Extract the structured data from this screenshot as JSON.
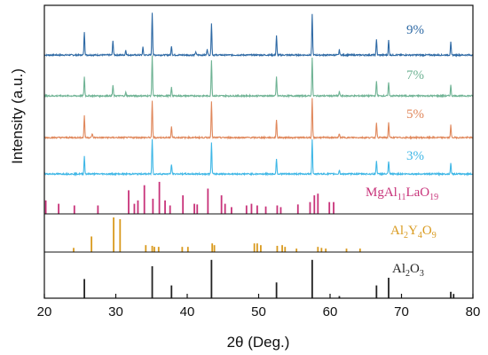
{
  "chart_data": {
    "type": "line",
    "title": "",
    "xlabel": "2θ (Deg.)",
    "ylabel": "Intensity (a.u.)",
    "xlim": [
      20,
      80
    ],
    "xticks": [
      20,
      30,
      40,
      50,
      60,
      70,
      80
    ],
    "grid": false,
    "colors": {
      "s9": "#2f6aa5",
      "s7": "#6fb394",
      "s5": "#e0885c",
      "s3": "#3fb7e6",
      "mgal": "#c8337a",
      "y4o9": "#d99a1e",
      "al2o3": "#222222",
      "axis": "#111111"
    },
    "series": [
      {
        "name": "9%",
        "key": "s9",
        "peaks": [
          [
            25.6,
            0.55
          ],
          [
            29.6,
            0.35
          ],
          [
            31.4,
            0.12
          ],
          [
            33.8,
            0.18
          ],
          [
            35.1,
            1.0
          ],
          [
            37.8,
            0.22
          ],
          [
            41.2,
            0.08
          ],
          [
            42.8,
            0.15
          ],
          [
            43.4,
            0.75
          ],
          [
            52.5,
            0.45
          ],
          [
            57.5,
            0.95
          ],
          [
            61.3,
            0.12
          ],
          [
            66.5,
            0.38
          ],
          [
            68.2,
            0.35
          ],
          [
            76.9,
            0.3
          ]
        ]
      },
      {
        "name": "7%",
        "key": "s7",
        "peaks": [
          [
            25.6,
            0.45
          ],
          [
            29.6,
            0.25
          ],
          [
            31.4,
            0.08
          ],
          [
            35.1,
            0.95
          ],
          [
            37.8,
            0.2
          ],
          [
            43.4,
            0.85
          ],
          [
            52.5,
            0.45
          ],
          [
            57.5,
            0.9
          ],
          [
            61.3,
            0.1
          ],
          [
            66.5,
            0.35
          ],
          [
            68.2,
            0.33
          ],
          [
            76.9,
            0.25
          ]
        ]
      },
      {
        "name": "5%",
        "key": "s5",
        "peaks": [
          [
            25.6,
            0.55
          ],
          [
            26.7,
            0.1
          ],
          [
            35.1,
            0.9
          ],
          [
            37.8,
            0.28
          ],
          [
            43.4,
            0.9
          ],
          [
            52.5,
            0.45
          ],
          [
            57.5,
            0.95
          ],
          [
            61.3,
            0.1
          ],
          [
            66.5,
            0.38
          ],
          [
            68.2,
            0.38
          ],
          [
            76.9,
            0.3
          ]
        ]
      },
      {
        "name": "3%",
        "key": "s3",
        "peaks": [
          [
            25.6,
            0.45
          ],
          [
            35.1,
            0.9
          ],
          [
            37.8,
            0.25
          ],
          [
            43.4,
            0.8
          ],
          [
            52.5,
            0.4
          ],
          [
            57.5,
            0.9
          ],
          [
            61.3,
            0.1
          ],
          [
            66.5,
            0.35
          ],
          [
            68.2,
            0.33
          ],
          [
            76.9,
            0.28
          ]
        ]
      }
    ],
    "references": [
      {
        "name_parts": [
          [
            "MgAl",
            ""
          ],
          [
            "11",
            "sub"
          ],
          [
            "LaO",
            ""
          ],
          [
            "19",
            "sub"
          ]
        ],
        "key": "mgal",
        "sticks": [
          [
            20.2,
            0.4
          ],
          [
            22.0,
            0.3
          ],
          [
            24.2,
            0.25
          ],
          [
            27.5,
            0.25
          ],
          [
            31.8,
            0.7
          ],
          [
            32.6,
            0.3
          ],
          [
            33.1,
            0.4
          ],
          [
            34.0,
            0.85
          ],
          [
            35.2,
            0.45
          ],
          [
            36.1,
            0.95
          ],
          [
            36.9,
            0.4
          ],
          [
            37.6,
            0.25
          ],
          [
            39.4,
            0.55
          ],
          [
            41.0,
            0.3
          ],
          [
            41.4,
            0.28
          ],
          [
            42.9,
            0.75
          ],
          [
            44.8,
            0.55
          ],
          [
            45.3,
            0.3
          ],
          [
            46.2,
            0.2
          ],
          [
            48.3,
            0.25
          ],
          [
            49.0,
            0.3
          ],
          [
            49.8,
            0.25
          ],
          [
            51.0,
            0.22
          ],
          [
            52.6,
            0.25
          ],
          [
            53.1,
            0.2
          ],
          [
            55.5,
            0.28
          ],
          [
            57.2,
            0.35
          ],
          [
            57.8,
            0.55
          ],
          [
            58.3,
            0.6
          ],
          [
            59.9,
            0.35
          ],
          [
            60.5,
            0.35
          ]
        ]
      },
      {
        "name_parts": [
          [
            "Al",
            ""
          ],
          [
            "2",
            "sub"
          ],
          [
            "Y",
            ""
          ],
          [
            "4",
            "sub"
          ],
          [
            "O",
            ""
          ],
          [
            "9",
            "sub"
          ]
        ],
        "key": "y4o9",
        "sticks": [
          [
            24.1,
            0.12
          ],
          [
            26.6,
            0.45
          ],
          [
            29.7,
            1.0
          ],
          [
            30.6,
            0.95
          ],
          [
            34.2,
            0.2
          ],
          [
            35.1,
            0.18
          ],
          [
            35.4,
            0.15
          ],
          [
            36.0,
            0.15
          ],
          [
            39.3,
            0.15
          ],
          [
            40.1,
            0.15
          ],
          [
            43.5,
            0.25
          ],
          [
            43.8,
            0.2
          ],
          [
            49.4,
            0.25
          ],
          [
            49.8,
            0.25
          ],
          [
            50.3,
            0.2
          ],
          [
            52.6,
            0.18
          ],
          [
            53.3,
            0.2
          ],
          [
            53.7,
            0.15
          ],
          [
            55.3,
            0.1
          ],
          [
            58.3,
            0.15
          ],
          [
            58.8,
            0.12
          ],
          [
            59.4,
            0.1
          ],
          [
            62.3,
            0.1
          ],
          [
            64.2,
            0.1
          ]
        ]
      },
      {
        "name_parts": [
          [
            "Al",
            ""
          ],
          [
            "2",
            "sub"
          ],
          [
            "O",
            ""
          ],
          [
            "3",
            "sub"
          ]
        ],
        "key": "al2o3",
        "sticks": [
          [
            25.6,
            0.45
          ],
          [
            35.1,
            0.75
          ],
          [
            37.8,
            0.3
          ],
          [
            43.4,
            0.9
          ],
          [
            52.5,
            0.37
          ],
          [
            57.5,
            0.9
          ],
          [
            61.3,
            0.05
          ],
          [
            66.5,
            0.3
          ],
          [
            68.2,
            0.48
          ],
          [
            76.9,
            0.15
          ],
          [
            77.3,
            0.1
          ]
        ]
      }
    ]
  }
}
